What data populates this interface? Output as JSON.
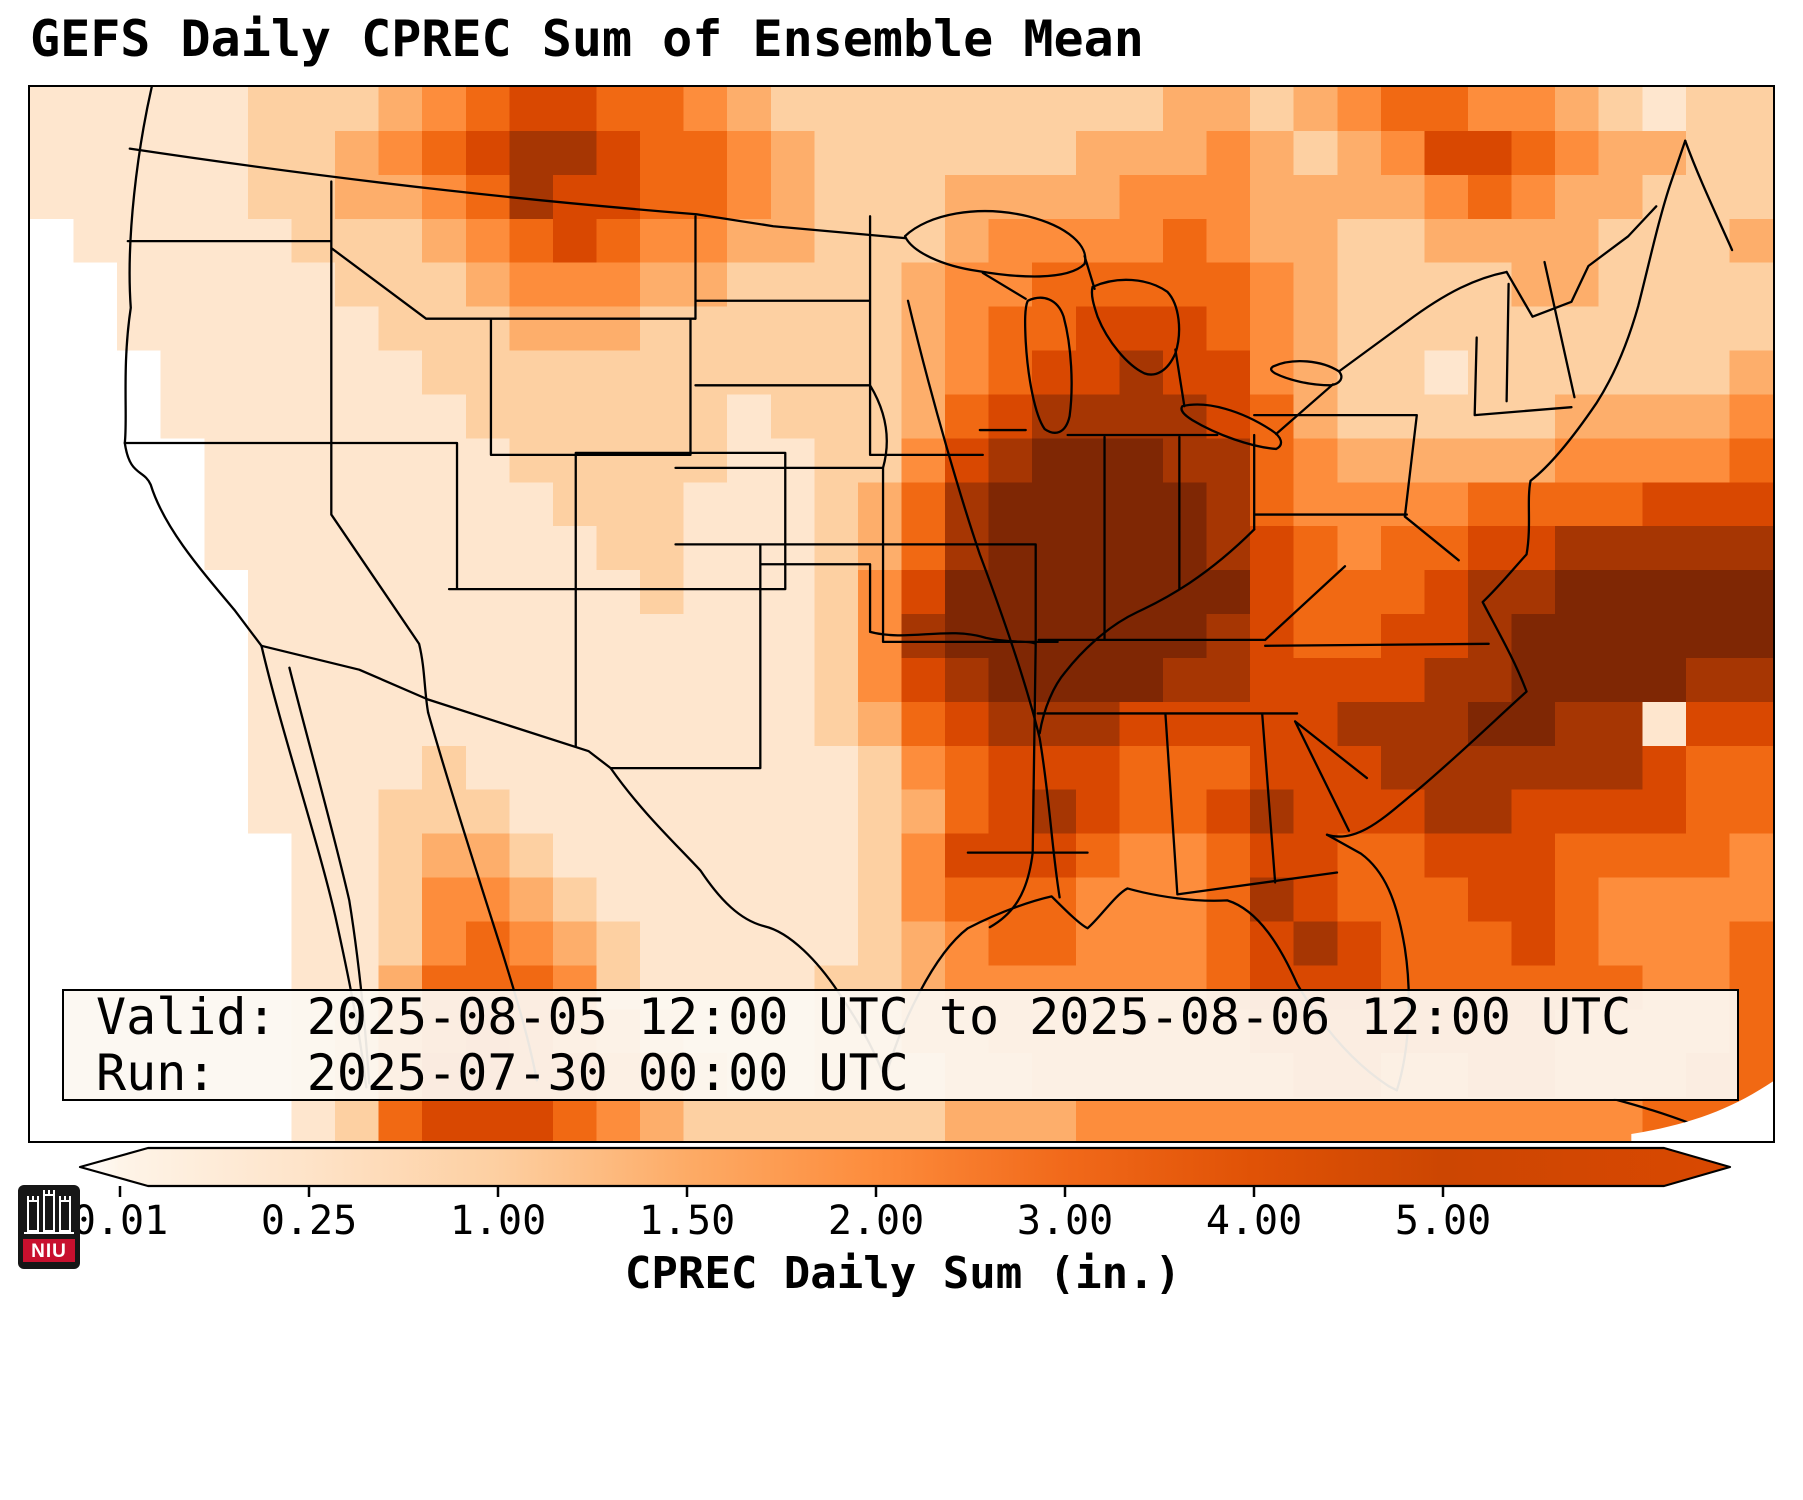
{
  "title": "GEFS Daily CPREC Sum of Ensemble Mean",
  "info_box": {
    "valid_line": "Valid: 2025-08-05 12:00 UTC to 2025-08-06 12:00 UTC",
    "run_line": "Run:   2025-07-30 00:00 UTC"
  },
  "colorbar": {
    "label": "CPREC Daily Sum (in.)",
    "ticks": [
      "0.01",
      "0.25",
      "1.00",
      "1.50",
      "2.00",
      "3.00",
      "4.00",
      "5.00"
    ]
  },
  "logo": {
    "text": "NIU",
    "band_color": "#c8102e"
  },
  "chart_data": {
    "type": "heatmap",
    "title": "GEFS Daily CPREC Sum of Ensemble Mean",
    "variable": "CPREC Daily Sum (in.)",
    "valid": "2025-08-05 12:00 UTC to 2025-08-06 12:00 UTC",
    "run": "2025-07-30 00:00 UTC",
    "colorbar_bounds_inches": [
      0.01,
      0.25,
      1.0,
      1.5,
      2.0,
      3.0,
      4.0,
      5.0
    ],
    "palette": [
      "#ffffff",
      "#fee6ce",
      "#fdd0a2",
      "#fdae6b",
      "#fd8d3c",
      "#f16913",
      "#d94801",
      "#a63603",
      "#7f2704"
    ],
    "level_values_inches": [
      0,
      0.1,
      0.4,
      0.9,
      1.3,
      1.8,
      2.5,
      3.5,
      5.0
    ],
    "grid_note": "Each character is a precipitation color level 0-8; 40 columns x 24 rows covering the CONUS map, west-to-east, north-to-south.",
    "grid": [
      "1111122234566554322222222233234554432 22",
      "1111122345677655432222223334323466543322",
      "1111122334576655432223333444333345433222",
      "0111112223456544332223444454332233332223",
      "0011111222344433222234455555432222332222",
      "0011111122233322222234556665432222222222",
      "0001111112222222222234566766432212222223",
      "0001111111222222122235677776532222233334",
      "0000111111122222112246788877543333344445",
      "0000111111112221112357888887544445555666",
      "0000111111111221112357888887654556677777",
      "0000011111111121112468888888655567788888",
      "0000011111111111112478888887655667888888",
      "0000011111111111112467888877666677888877",
      "0000011111111111112356777666667778877 66",
      "0000011112111111111245666555666777777655",
      "0000011122211111111235676556766677666655",
      "0000001123321111111246665445665566655554",
      "0000001124432111111245554445765556654444",
      "0000001124543211111234554445676555654445",
      "0000001135554211112234444445666555555445",
      "0000001245654321112233444444555555544445",
      "0000001246655432112223344444455445544455",
      "0000001256665432222223334444444444444555"
    ]
  }
}
